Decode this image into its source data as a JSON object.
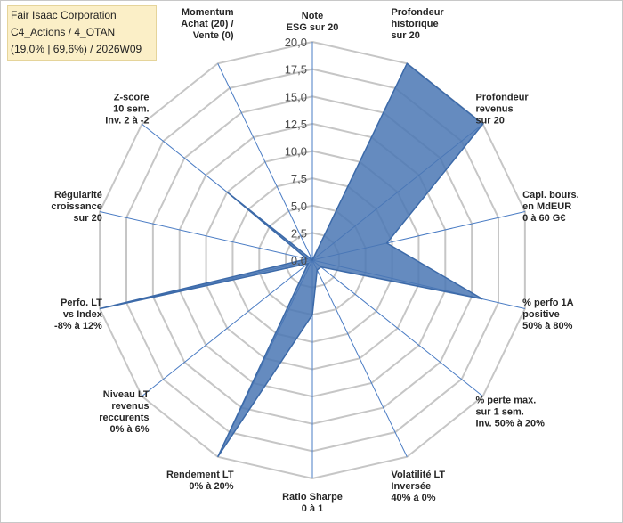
{
  "header": {
    "company": "Fair Isaac Corporation",
    "category": "C4_Actions / 4_OTAN",
    "stats": "(19,0% | 69,6%) / 2026W09"
  },
  "chart_data": {
    "type": "radar",
    "rlim": [
      0,
      20
    ],
    "ticks": [
      "0,0",
      "2,5",
      "5,0",
      "7,5",
      "10,0",
      "12,5",
      "15,0",
      "17,5",
      "20,0"
    ],
    "axes": [
      {
        "label": [
          "Note",
          "ESG sur 20"
        ],
        "value": 0
      },
      {
        "label": [
          "Profondeur",
          "historique",
          "sur 20"
        ],
        "value": 20
      },
      {
        "label": [
          "Profondeur",
          "revenus",
          "sur 20"
        ],
        "value": 20
      },
      {
        "label": [
          "Capi. bours.",
          "en MdEUR",
          "0 à 60 G€"
        ],
        "value": 7
      },
      {
        "label": [
          "% perfo 1A",
          "positive",
          "50% à 80%"
        ],
        "value": 16
      },
      {
        "label": [
          "% perte max.",
          "sur 1 sem.",
          "Inv. 50% à 20%"
        ],
        "value": 1
      },
      {
        "label": [
          "Volatilité LT",
          "Inversée",
          "40% à 0%"
        ],
        "value": 1
      },
      {
        "label": [
          "Ratio Sharpe",
          "0 à 1"
        ],
        "value": 5
      },
      {
        "label": [
          "Rendement LT",
          "0% à 20%"
        ],
        "value": 20
      },
      {
        "label": [
          "Niveau LT",
          "revenus",
          "reccurents",
          "0% à 6%"
        ],
        "value": 0.5
      },
      {
        "label": [
          "Perfo. LT",
          "vs Index",
          "-8% à 12%"
        ],
        "value": 20
      },
      {
        "label": [
          "Régularité",
          "croissance",
          "sur 20"
        ],
        "value": 0.5
      },
      {
        "label": [
          "Z-score",
          "10 sem.",
          "Inv. 2 à -2"
        ],
        "value": 10
      },
      {
        "label": [
          "Momentum",
          "Achat (20) /",
          "Vente (0)"
        ],
        "value": 0
      }
    ],
    "grid": true,
    "colors": {
      "fill": "#4a77b4",
      "stroke": "#3c6aa9",
      "grid": "#c6c6c6",
      "axis": "#4a7cc4"
    }
  }
}
